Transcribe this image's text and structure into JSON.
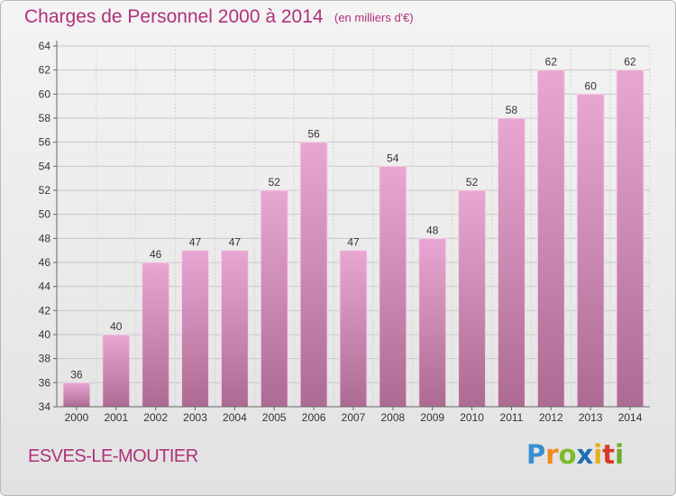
{
  "header": {
    "title": "Charges de Personnel 2000 à 2014",
    "subtitle": "(en milliers d'€)"
  },
  "footer": {
    "commune": "ESVES-LE-MOUTIER",
    "logo_text": "Proxiti"
  },
  "colors": {
    "accent": "#b0307a",
    "bar_top": "#e8a7d2",
    "bar_bottom": "#ad6b93",
    "grid": "#c8c8c8"
  },
  "chart_data": {
    "type": "bar",
    "title": "Charges de Personnel 2000 à 2014",
    "subtitle": "(en milliers d'€)",
    "categories": [
      "2000",
      "2001",
      "2002",
      "2003",
      "2004",
      "2005",
      "2006",
      "2007",
      "2008",
      "2009",
      "2010",
      "2011",
      "2012",
      "2013",
      "2014"
    ],
    "values": [
      36,
      40,
      46,
      47,
      47,
      52,
      56,
      47,
      54,
      48,
      52,
      58,
      62,
      60,
      62
    ],
    "ylim": [
      34,
      64
    ],
    "yticks": [
      34,
      36,
      38,
      40,
      42,
      44,
      46,
      48,
      50,
      52,
      54,
      56,
      58,
      60,
      62,
      64
    ],
    "grid": true,
    "data_labels": true
  }
}
